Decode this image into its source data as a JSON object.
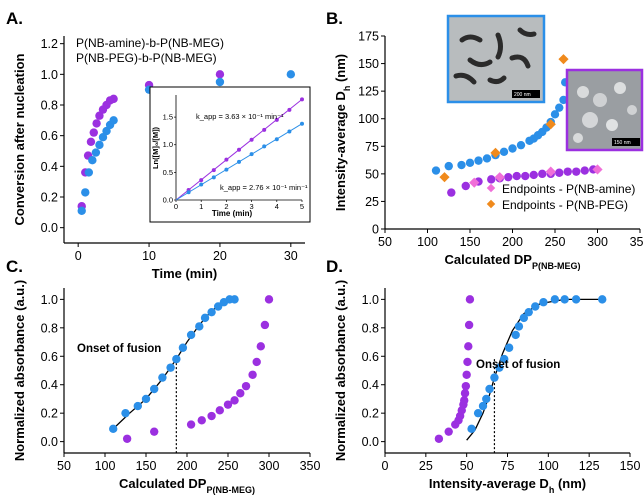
{
  "colors": {
    "purple": "#9b30e0",
    "blue": "#2b8fe8",
    "pink": "#f06fd8",
    "orange": "#f08a1c",
    "black": "#000000",
    "dark_blue": "#1f5fa8"
  },
  "chart_data": [
    {
      "panel": "A.",
      "type": "scatter",
      "xlabel": "Time (min)",
      "ylabel": "Conversion after nucleation",
      "xlim": [
        -2,
        32
      ],
      "ylim": [
        -0.1,
        1.25
      ],
      "xticks": [
        "0",
        "10",
        "20",
        "30"
      ],
      "yticks": [
        "0.0",
        "0.2",
        "0.4",
        "0.6",
        "0.8",
        "1.0",
        "1.2"
      ],
      "legend": [
        "P(NB-amine)-b-P(NB-MEG)",
        "P(NB-PEG)-b-P(NB-MEG)"
      ],
      "series": [
        {
          "name": "P(NB-amine)-b-P(NB-MEG)",
          "color": "purple",
          "x": [
            0.5,
            1,
            1.4,
            1.8,
            2.2,
            2.6,
            3.0,
            3.5,
            4.0,
            4.5,
            5.0,
            10,
            20
          ],
          "y": [
            0.14,
            0.36,
            0.47,
            0.56,
            0.62,
            0.68,
            0.73,
            0.77,
            0.8,
            0.83,
            0.84,
            0.93,
            1.0
          ]
        },
        {
          "name": "P(NB-PEG)-b-P(NB-MEG)",
          "color": "blue",
          "x": [
            0.5,
            1,
            1.5,
            2.0,
            2.5,
            3.0,
            3.5,
            4.0,
            4.5,
            5.0,
            10,
            20,
            30
          ],
          "y": [
            0.11,
            0.23,
            0.36,
            0.44,
            0.49,
            0.54,
            0.59,
            0.63,
            0.67,
            0.7,
            0.9,
            0.95,
            1.0
          ]
        }
      ],
      "inset": {
        "xlabel": "Time (min)",
        "ylabel": "Ln([M]₀/[M])",
        "xlim": [
          0,
          5
        ],
        "xticks": [
          "0",
          "1",
          "2",
          "3",
          "4",
          "5"
        ],
        "yticks": [
          "0.0",
          "0.5",
          "1.0",
          "1.5"
        ],
        "ylim": [
          0,
          1.9
        ],
        "series": [
          {
            "color": "purple",
            "label": "k_app = 3.63 × 10⁻¹ min⁻¹",
            "x": [
              0.5,
              1,
              1.5,
              2,
              2.5,
              3,
              3.5,
              4,
              4.5,
              5
            ],
            "y": [
              0.18,
              0.36,
              0.54,
              0.73,
              0.91,
              1.09,
              1.27,
              1.45,
              1.63,
              1.82
            ]
          },
          {
            "color": "blue",
            "label": "k_app = 2.76 × 10⁻¹ min⁻¹",
            "x": [
              0.5,
              1,
              1.5,
              2,
              2.5,
              3,
              3.5,
              4,
              4.5,
              5
            ],
            "y": [
              0.14,
              0.28,
              0.41,
              0.55,
              0.69,
              0.83,
              0.97,
              1.1,
              1.24,
              1.38
            ]
          }
        ]
      }
    },
    {
      "panel": "B.",
      "type": "scatter",
      "xlabel": "Calculated DP",
      "xlabel_sub": "P(NB-MEG)",
      "ylabel": "Intensity-average D",
      "ylabel_sub": "h",
      "ylabel_unit": " (nm)",
      "xlim": [
        50,
        350
      ],
      "ylim": [
        0,
        175
      ],
      "xticks": [
        "50",
        "100",
        "150",
        "200",
        "250",
        "300",
        "350"
      ],
      "yticks": [
        "0",
        "25",
        "50",
        "75",
        "100",
        "125",
        "150",
        "175"
      ],
      "legend": [
        "Endpoints - P(NB-amine)",
        "Endpoints - P(NB-PEG)"
      ],
      "scalebars": [
        "200 nm",
        "150 nm"
      ],
      "series": [
        {
          "name": "blue",
          "color": "blue",
          "x": [
            110,
            125,
            140,
            150,
            160,
            170,
            180,
            190,
            200,
            210,
            220,
            225,
            230,
            235,
            240,
            245,
            250,
            255,
            260,
            262
          ],
          "y": [
            53,
            57,
            58,
            60,
            62,
            64,
            67,
            70,
            73,
            76,
            80,
            82,
            85,
            88,
            92,
            97,
            104,
            110,
            117,
            133
          ]
        },
        {
          "name": "purple",
          "color": "purple",
          "x": [
            128,
            145,
            160,
            175,
            185,
            195,
            205,
            215,
            225,
            235,
            245,
            255,
            265,
            275,
            285,
            295
          ],
          "y": [
            33,
            39,
            43,
            45,
            46,
            47,
            48,
            48,
            49,
            50,
            50,
            51,
            52,
            52,
            53,
            54
          ]
        },
        {
          "name": "Endpoints - P(NB-amine)",
          "color": "pink",
          "marker": "diamond",
          "x": [
            155,
            185,
            245,
            300
          ],
          "y": [
            42,
            47,
            52,
            54
          ]
        },
        {
          "name": "Endpoints - P(NB-PEG)",
          "color": "orange",
          "marker": "diamond",
          "x": [
            120,
            180,
            245,
            260
          ],
          "y": [
            47,
            69,
            95,
            154
          ]
        }
      ]
    },
    {
      "panel": "C.",
      "type": "scatter",
      "xlabel": "Calculated DP",
      "xlabel_sub": "P(NB-MEG)",
      "ylabel": "Normalized absorbance (a.u.)",
      "xlim": [
        50,
        350
      ],
      "ylim": [
        -0.08,
        1.08
      ],
      "xticks": [
        "50",
        "100",
        "150",
        "200",
        "250",
        "300",
        "350"
      ],
      "yticks": [
        "0.0",
        "0.2",
        "0.4",
        "0.6",
        "0.8",
        "1.0"
      ],
      "annotation": "Onset of fusion",
      "onset_x": 187,
      "series": [
        {
          "name": "blue",
          "color": "blue",
          "x": [
            110,
            125,
            140,
            150,
            160,
            170,
            180,
            187,
            195,
            205,
            215,
            222,
            230,
            238,
            245,
            252,
            258
          ],
          "y": [
            0.09,
            0.2,
            0.25,
            0.3,
            0.37,
            0.45,
            0.52,
            0.58,
            0.66,
            0.75,
            0.81,
            0.87,
            0.91,
            0.95,
            0.98,
            1.0,
            1.0
          ]
        },
        {
          "name": "purple",
          "color": "purple",
          "x": [
            127,
            160,
            205,
            218,
            230,
            240,
            250,
            258,
            265,
            272,
            280,
            285,
            290,
            295,
            300
          ],
          "y": [
            0.02,
            0.07,
            0.12,
            0.15,
            0.18,
            0.22,
            0.26,
            0.29,
            0.34,
            0.39,
            0.47,
            0.56,
            0.67,
            0.82,
            1.0
          ]
        }
      ],
      "fit": {
        "x": [
          110,
          130,
          150,
          170,
          187,
          200,
          215,
          230,
          245,
          258
        ],
        "y": [
          0.09,
          0.2,
          0.3,
          0.44,
          0.58,
          0.7,
          0.82,
          0.92,
          0.98,
          1.0
        ]
      }
    },
    {
      "panel": "D.",
      "type": "scatter",
      "xlabel": "Intensity-average D",
      "xlabel_sub": "h",
      "xlabel_unit": " (nm)",
      "ylabel": "Normalized absorbance (a.u.)",
      "xlim": [
        0,
        150
      ],
      "ylim": [
        -0.08,
        1.08
      ],
      "xticks": [
        "0",
        "25",
        "50",
        "75",
        "100",
        "125",
        "150"
      ],
      "yticks": [
        "0.0",
        "0.2",
        "0.4",
        "0.6",
        "0.8",
        "1.0"
      ],
      "annotation": "Onset of fusion",
      "onset_x": 67,
      "series": [
        {
          "name": "blue",
          "color": "blue",
          "x": [
            53,
            57,
            60,
            62,
            64,
            67,
            70,
            73,
            76,
            80,
            82,
            85,
            88,
            92,
            97,
            104,
            110,
            117,
            133
          ],
          "y": [
            0.09,
            0.2,
            0.25,
            0.3,
            0.37,
            0.45,
            0.52,
            0.58,
            0.66,
            0.75,
            0.81,
            0.87,
            0.91,
            0.95,
            0.98,
            1.0,
            1.0,
            1.0,
            1.0
          ]
        },
        {
          "name": "purple",
          "color": "purple",
          "x": [
            33,
            39,
            43,
            45,
            46,
            47,
            48,
            48.5,
            49,
            49.5,
            50,
            50.5,
            51,
            51.5,
            52
          ],
          "y": [
            0.02,
            0.07,
            0.12,
            0.15,
            0.18,
            0.22,
            0.26,
            0.29,
            0.34,
            0.39,
            0.47,
            0.56,
            0.67,
            0.82,
            1.0
          ]
        }
      ],
      "fit": {
        "x": [
          50,
          55,
          60,
          64,
          67,
          72,
          78,
          85,
          95,
          110,
          133
        ],
        "y": [
          0.01,
          0.08,
          0.2,
          0.33,
          0.45,
          0.62,
          0.78,
          0.9,
          0.97,
          1.0,
          1.0
        ]
      }
    }
  ]
}
